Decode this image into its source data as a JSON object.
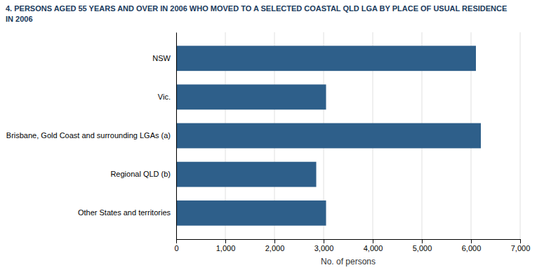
{
  "chart_data": {
    "type": "bar",
    "orientation": "horizontal",
    "title": "4. PERSONS AGED 55 YEARS AND OVER IN 2006 WHO MOVED TO A SELECTED COASTAL QLD LGA BY PLACE OF USUAL RESIDENCE",
    "subtitle": "IN 2006",
    "x_label": "No. of persons",
    "categories": [
      "NSW",
      "Vic.",
      "Brisbane, Gold Coast and surrounding LGAs (a)",
      "Regional QLD (b)",
      "Other States and territories"
    ],
    "values": [
      6100,
      3050,
      6200,
      2850,
      3050
    ],
    "color": "#2e5f8a",
    "xlim": [
      0,
      7000
    ],
    "xticks": [
      0,
      {
        "value": 1000,
        "label": "1,000"
      },
      {
        "value": 2000,
        "label": "2,000"
      },
      {
        "value": 3000,
        "label": "3,000"
      },
      {
        "value": 4000,
        "label": "4,000"
      },
      {
        "value": 5000,
        "label": "5,000"
      },
      {
        "value": 6000,
        "label": "6,000"
      },
      {
        "value": 7000,
        "label": "7,000"
      }
    ],
    "grid": true
  }
}
